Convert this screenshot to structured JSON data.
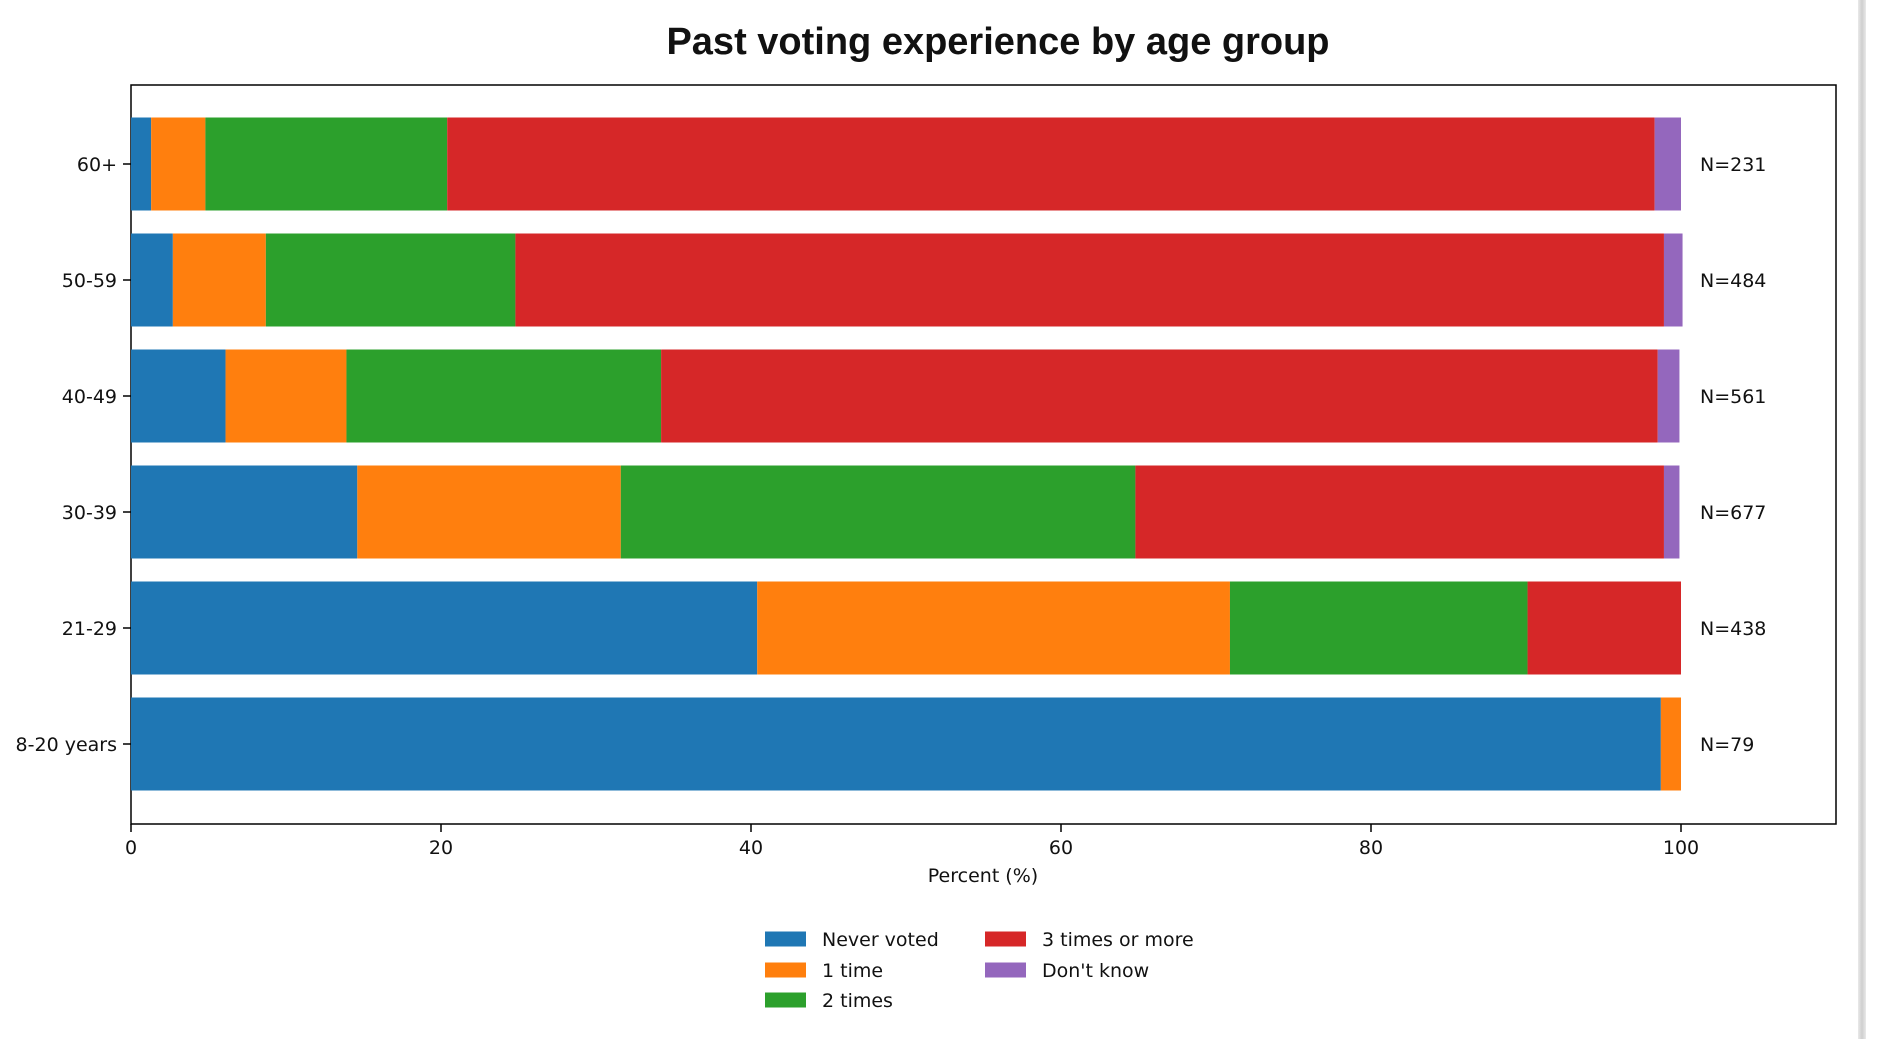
{
  "chart_data": {
    "type": "bar",
    "orientation": "horizontal",
    "stacked": true,
    "title": "Past voting experience by age group",
    "xlabel": "Percent (%)",
    "ylabel": "",
    "xlim": [
      0,
      110
    ],
    "xticks": [
      0,
      20,
      40,
      60,
      80,
      100
    ],
    "grid": false,
    "legend_position": "bottom-center",
    "categories": [
      "60+",
      "50-59",
      "40-49",
      "30-39",
      "21-29",
      "8-20 years"
    ],
    "sample_sizes": [
      "N=231",
      "N=484",
      "N=561",
      "N=677",
      "N=438",
      "N=79"
    ],
    "series": [
      {
        "name": "Never voted",
        "color": "#1f77b4",
        "values": [
          1.3,
          2.7,
          6.1,
          14.6,
          40.4,
          98.7
        ]
      },
      {
        "name": "1 time",
        "color": "#ff7f0e",
        "values": [
          3.5,
          6.0,
          7.8,
          17.0,
          30.5,
          1.3
        ]
      },
      {
        "name": "2 times",
        "color": "#2ca02c",
        "values": [
          15.6,
          16.1,
          20.3,
          33.2,
          19.2,
          0
        ]
      },
      {
        "name": "3 times or more",
        "color": "#d62728",
        "values": [
          77.9,
          74.1,
          64.3,
          34.1,
          9.9,
          0
        ]
      },
      {
        "name": "Don't know",
        "color": "#9467bd",
        "values": [
          1.7,
          1.2,
          1.4,
          1.0,
          0,
          0
        ]
      }
    ]
  }
}
